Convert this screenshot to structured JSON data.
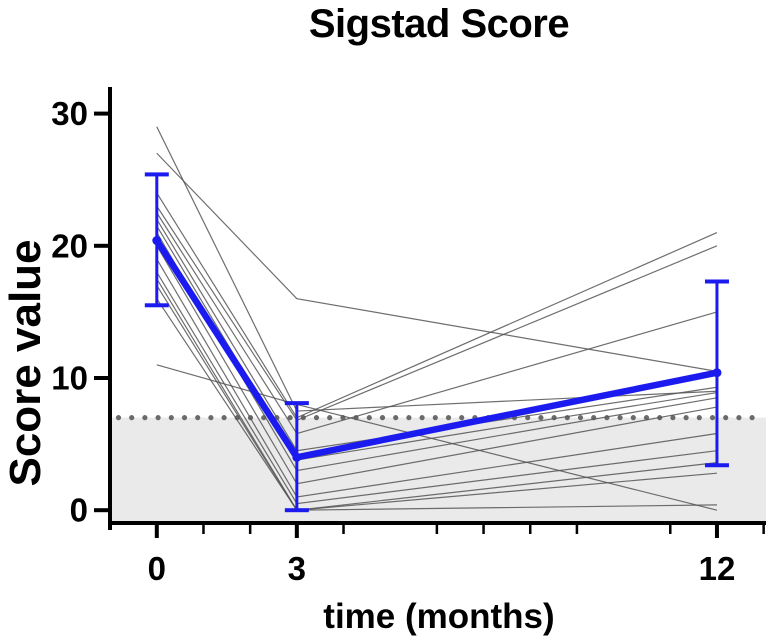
{
  "chart_data": {
    "type": "line",
    "title": "Sigstad Score",
    "xlabel": "time (months)",
    "ylabel": "Score value",
    "x_months": [
      0,
      3,
      12
    ],
    "xticks_major": [
      0,
      3,
      12
    ],
    "xtick_labels": [
      "0",
      "3",
      "12"
    ],
    "xticks_minor": [
      1,
      2,
      4,
      6,
      7,
      8,
      9,
      11,
      13
    ],
    "yticks": [
      0,
      10,
      20,
      30
    ],
    "ytick_labels": [
      "0",
      "10",
      "20",
      "30"
    ],
    "xlim": [
      -0.96,
      13.05
    ],
    "ylim": [
      -1.5,
      32
    ],
    "grid": "off",
    "legend": "none",
    "threshold_line": {
      "value": 7,
      "style": "dotted",
      "color": "#6a6a6a"
    },
    "shaded_region": {
      "from_value": 0,
      "to_value": 7,
      "note": "light gray band below threshold down to x-axis",
      "color": "#eaeaea"
    },
    "mean_series": {
      "name": "mean-with-error-bars",
      "color": "#1b1bf0",
      "x": [
        0,
        3,
        12
      ],
      "values": [
        20.4,
        4.0,
        10.4
      ],
      "error_low": [
        15.5,
        0.0,
        3.4
      ],
      "error_high": [
        25.4,
        8.1,
        17.3
      ]
    },
    "individual_series": {
      "name": "individual-patients",
      "color": "#555555",
      "x": [
        0,
        3,
        12
      ],
      "lines": [
        [
          29,
          7.5,
          9
        ],
        [
          27,
          16,
          10.5
        ],
        [
          24,
          7,
          21
        ],
        [
          23,
          6.8,
          20
        ],
        [
          22.5,
          5.8,
          15
        ],
        [
          22,
          4.5,
          9.3
        ],
        [
          21.5,
          3.8,
          8.9
        ],
        [
          21,
          3,
          8.5
        ],
        [
          20,
          2,
          7.8
        ],
        [
          19,
          1,
          5.8
        ],
        [
          18,
          0.5,
          4.5
        ],
        [
          17.5,
          0,
          3.6
        ],
        [
          17,
          0,
          2.8
        ],
        [
          16,
          0,
          0.4
        ],
        [
          11,
          8,
          0
        ]
      ]
    },
    "colors": {
      "axis": "#000000",
      "mean_line": "#1b1bf0",
      "patient_line": "#555555",
      "threshold_dot": "#6a6a6a",
      "shade": "#eaeaea",
      "background": "#ffffff"
    }
  }
}
